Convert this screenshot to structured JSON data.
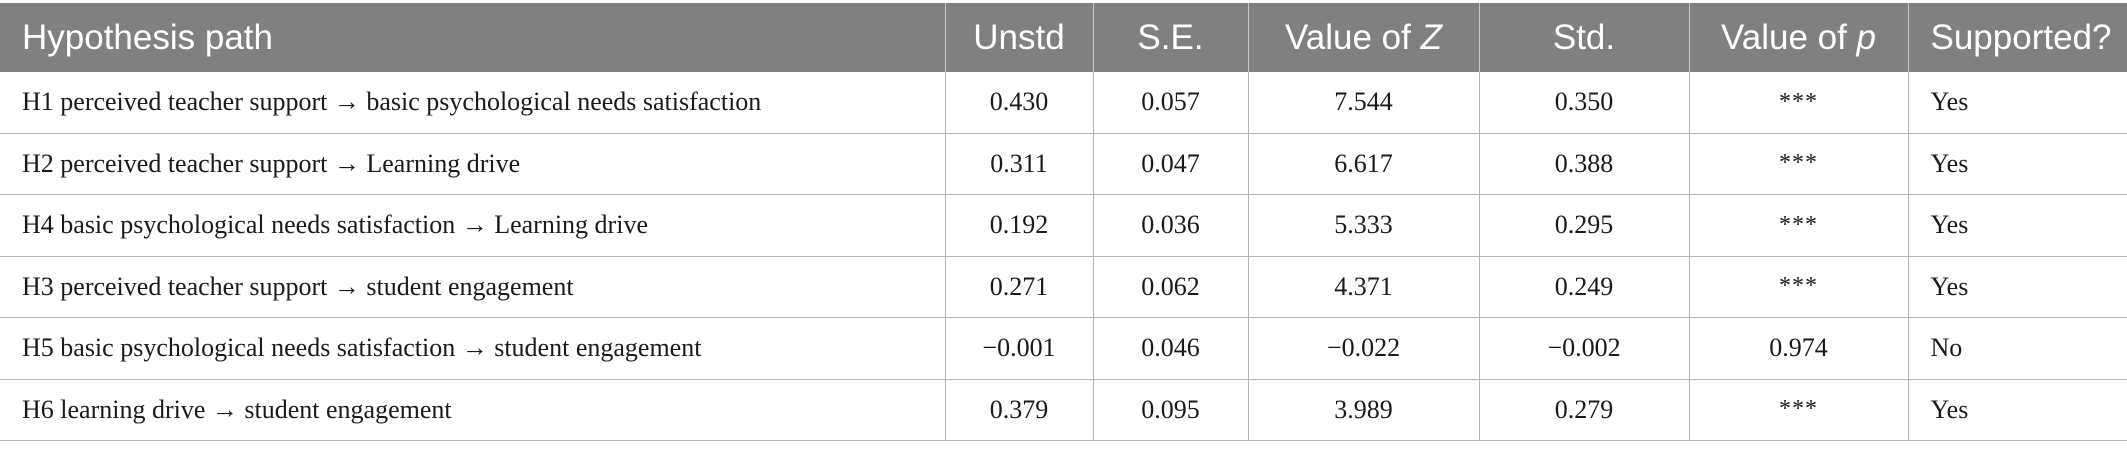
{
  "table": {
    "headers": {
      "path": "Hypothesis path",
      "unstd": "Unstd",
      "se": "S.E.",
      "z_prefix": "Value of ",
      "z_var": "Z",
      "std": "Std.",
      "p_prefix": "Value of ",
      "p_var": "p",
      "supported": "Supported?"
    },
    "rows": [
      {
        "path": "H1 perceived teacher support → basic psychological needs satisfaction",
        "unstd": "0.430",
        "se": "0.057",
        "z": "7.544",
        "std": "0.350",
        "p": "***",
        "supported": "Yes"
      },
      {
        "path": "H2 perceived teacher support → Learning drive",
        "unstd": "0.311",
        "se": "0.047",
        "z": "6.617",
        "std": "0.388",
        "p": "***",
        "supported": "Yes"
      },
      {
        "path": "H4 basic psychological needs satisfaction → Learning drive",
        "unstd": "0.192",
        "se": "0.036",
        "z": "5.333",
        "std": "0.295",
        "p": "***",
        "supported": "Yes"
      },
      {
        "path": "H3 perceived teacher support → student engagement",
        "unstd": "0.271",
        "se": "0.062",
        "z": "4.371",
        "std": "0.249",
        "p": "***",
        "supported": "Yes"
      },
      {
        "path": "H5 basic psychological needs satisfaction → student engagement",
        "unstd": "−0.001",
        "se": "0.046",
        "z": "−0.022",
        "std": "−0.002",
        "p": "0.974",
        "supported": "No"
      },
      {
        "path": "H6 learning drive → student engagement",
        "unstd": "0.379",
        "se": "0.095",
        "z": "3.989",
        "std": "0.279",
        "p": "***",
        "supported": "Yes"
      }
    ]
  }
}
